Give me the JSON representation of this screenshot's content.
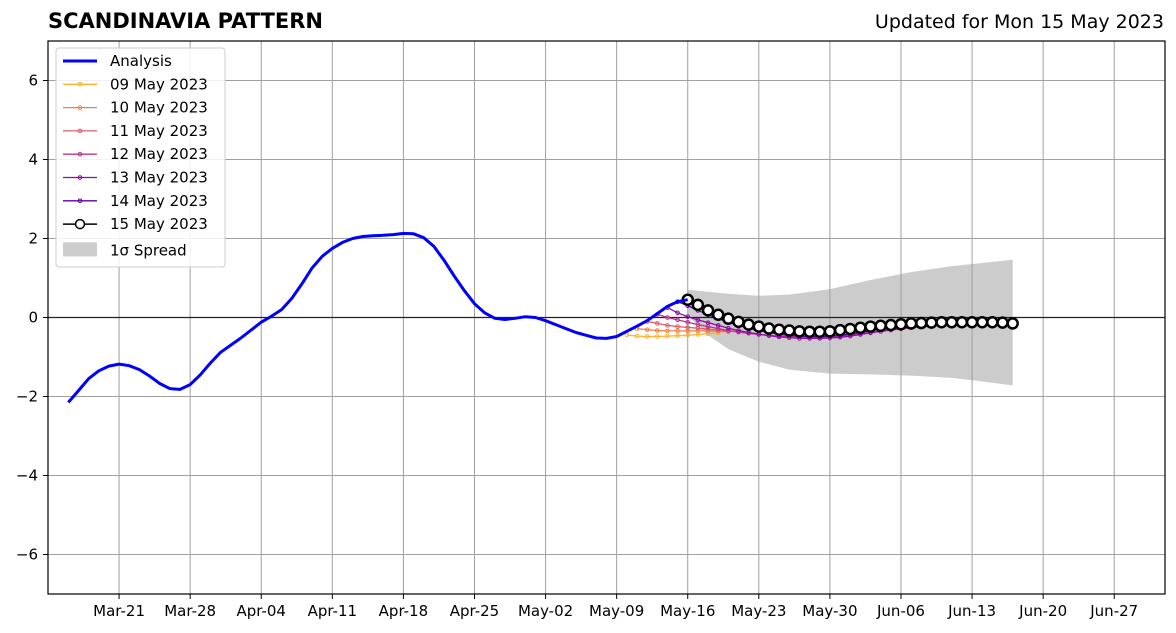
{
  "chart_data": {
    "type": "line",
    "title": "SCANDINAVIA PATTERN",
    "subtitle": "Updated for Mon 15 May 2023",
    "xlabel": "",
    "ylabel": "",
    "xlim": [
      "2023-03-14",
      "2023-07-02"
    ],
    "ylim": [
      -7,
      7
    ],
    "x_ticks": [
      "Mar-21",
      "Mar-28",
      "Apr-04",
      "Apr-11",
      "Apr-18",
      "Apr-25",
      "May-02",
      "May-09",
      "May-16",
      "May-23",
      "May-30",
      "Jun-06",
      "Jun-13",
      "Jun-20",
      "Jun-27"
    ],
    "y_ticks": [
      -6,
      -4,
      -2,
      0,
      2,
      4,
      6
    ],
    "y_tick_labels": [
      "−6",
      "−4",
      "−2",
      "0",
      "2",
      "4",
      "6"
    ],
    "grid": true,
    "legend_position": "top-left",
    "analysis": {
      "name": "Analysis",
      "color": "#0000ff",
      "points": [
        [
          "2023-03-16",
          -2.15
        ],
        [
          "2023-03-17",
          -1.85
        ],
        [
          "2023-03-18",
          -1.55
        ],
        [
          "2023-03-19",
          -1.35
        ],
        [
          "2023-03-20",
          -1.23
        ],
        [
          "2023-03-21",
          -1.18
        ],
        [
          "2023-03-22",
          -1.22
        ],
        [
          "2023-03-23",
          -1.32
        ],
        [
          "2023-03-24",
          -1.48
        ],
        [
          "2023-03-25",
          -1.67
        ],
        [
          "2023-03-26",
          -1.8
        ],
        [
          "2023-03-27",
          -1.82
        ],
        [
          "2023-03-28",
          -1.7
        ],
        [
          "2023-03-29",
          -1.45
        ],
        [
          "2023-03-30",
          -1.15
        ],
        [
          "2023-03-31",
          -0.88
        ],
        [
          "2023-04-01",
          -0.7
        ],
        [
          "2023-04-02",
          -0.52
        ],
        [
          "2023-04-03",
          -0.32
        ],
        [
          "2023-04-04",
          -0.12
        ],
        [
          "2023-04-05",
          0.03
        ],
        [
          "2023-04-06",
          0.2
        ],
        [
          "2023-04-07",
          0.48
        ],
        [
          "2023-04-08",
          0.85
        ],
        [
          "2023-04-09",
          1.25
        ],
        [
          "2023-04-10",
          1.55
        ],
        [
          "2023-04-11",
          1.75
        ],
        [
          "2023-04-12",
          1.9
        ],
        [
          "2023-04-13",
          2.0
        ],
        [
          "2023-04-14",
          2.05
        ],
        [
          "2023-04-15",
          2.07
        ],
        [
          "2023-04-16",
          2.08
        ],
        [
          "2023-04-17",
          2.1
        ],
        [
          "2023-04-18",
          2.13
        ],
        [
          "2023-04-19",
          2.12
        ],
        [
          "2023-04-20",
          2.02
        ],
        [
          "2023-04-21",
          1.8
        ],
        [
          "2023-04-22",
          1.45
        ],
        [
          "2023-04-23",
          1.05
        ],
        [
          "2023-04-24",
          0.68
        ],
        [
          "2023-04-25",
          0.35
        ],
        [
          "2023-04-26",
          0.12
        ],
        [
          "2023-04-27",
          -0.02
        ],
        [
          "2023-04-28",
          -0.05
        ],
        [
          "2023-04-29",
          -0.02
        ],
        [
          "2023-04-30",
          0.02
        ],
        [
          "2023-05-01",
          0.0
        ],
        [
          "2023-05-02",
          -0.08
        ],
        [
          "2023-05-03",
          -0.18
        ],
        [
          "2023-05-04",
          -0.28
        ],
        [
          "2023-05-05",
          -0.38
        ],
        [
          "2023-05-06",
          -0.45
        ],
        [
          "2023-05-07",
          -0.52
        ],
        [
          "2023-05-08",
          -0.53
        ],
        [
          "2023-05-09",
          -0.48
        ],
        [
          "2023-05-10",
          -0.35
        ],
        [
          "2023-05-11",
          -0.22
        ],
        [
          "2023-05-12",
          -0.08
        ],
        [
          "2023-05-13",
          0.1
        ],
        [
          "2023-05-14",
          0.28
        ],
        [
          "2023-05-15",
          0.4
        ],
        [
          "2023-05-16",
          0.45
        ]
      ]
    },
    "forecasts": [
      {
        "name": "09 May 2023",
        "color": "#fdb32f",
        "points": [
          [
            "2023-05-10",
            -0.44
          ],
          [
            "2023-05-11",
            -0.47
          ],
          [
            "2023-05-12",
            -0.48
          ],
          [
            "2023-05-13",
            -0.48
          ],
          [
            "2023-05-14",
            -0.47
          ],
          [
            "2023-05-15",
            -0.46
          ],
          [
            "2023-05-16",
            -0.45
          ],
          [
            "2023-05-17",
            -0.43
          ],
          [
            "2023-05-18",
            -0.41
          ],
          [
            "2023-05-19",
            -0.39
          ]
        ]
      },
      {
        "name": "10 May 2023",
        "color": "#f1813f",
        "points": [
          [
            "2023-05-11",
            -0.28
          ],
          [
            "2023-05-12",
            -0.31
          ],
          [
            "2023-05-13",
            -0.33
          ],
          [
            "2023-05-14",
            -0.34
          ],
          [
            "2023-05-15",
            -0.34
          ],
          [
            "2023-05-16",
            -0.34
          ],
          [
            "2023-05-17",
            -0.34
          ],
          [
            "2023-05-18",
            -0.34
          ],
          [
            "2023-05-19",
            -0.35
          ],
          [
            "2023-05-20",
            -0.36
          ]
        ]
      },
      {
        "name": "11 May 2023",
        "color": "#db5c68",
        "points": [
          [
            "2023-05-12",
            -0.1
          ],
          [
            "2023-05-13",
            -0.15
          ],
          [
            "2023-05-14",
            -0.2
          ],
          [
            "2023-05-15",
            -0.23
          ],
          [
            "2023-05-16",
            -0.25
          ],
          [
            "2023-05-17",
            -0.27
          ],
          [
            "2023-05-18",
            -0.3
          ],
          [
            "2023-05-19",
            -0.32
          ],
          [
            "2023-05-20",
            -0.34
          ],
          [
            "2023-05-21",
            -0.36
          ]
        ]
      },
      {
        "name": "12 May 2023",
        "color": "#b83289",
        "points": [
          [
            "2023-05-13",
            0.08
          ],
          [
            "2023-05-14",
            0.0
          ],
          [
            "2023-05-15",
            -0.06
          ],
          [
            "2023-05-16",
            -0.12
          ],
          [
            "2023-05-17",
            -0.18
          ],
          [
            "2023-05-18",
            -0.23
          ],
          [
            "2023-05-19",
            -0.28
          ],
          [
            "2023-05-20",
            -0.33
          ],
          [
            "2023-05-21",
            -0.37
          ],
          [
            "2023-05-22",
            -0.4
          ],
          [
            "2023-05-23",
            -0.43
          ],
          [
            "2023-05-24",
            -0.45
          ],
          [
            "2023-05-25",
            -0.47
          ],
          [
            "2023-05-26",
            -0.48
          ],
          [
            "2023-05-27",
            -0.49
          ],
          [
            "2023-05-28",
            -0.5
          ],
          [
            "2023-05-29",
            -0.5
          ],
          [
            "2023-05-30",
            -0.49
          ],
          [
            "2023-05-31",
            -0.47
          ],
          [
            "2023-06-01",
            -0.44
          ],
          [
            "2023-06-02",
            -0.41
          ],
          [
            "2023-06-03",
            -0.38
          ],
          [
            "2023-06-04",
            -0.35
          ],
          [
            "2023-06-05",
            -0.32
          ],
          [
            "2023-06-06",
            -0.29
          ],
          [
            "2023-06-07",
            -0.26
          ],
          [
            "2023-06-08",
            -0.24
          ],
          [
            "2023-06-09",
            -0.22
          ]
        ]
      },
      {
        "name": "13 May 2023",
        "color": "#8b0aa5",
        "points": [
          [
            "2023-05-14",
            0.25
          ],
          [
            "2023-05-15",
            0.12
          ],
          [
            "2023-05-16",
            0.02
          ],
          [
            "2023-05-17",
            -0.06
          ],
          [
            "2023-05-18",
            -0.13
          ],
          [
            "2023-05-19",
            -0.2
          ],
          [
            "2023-05-20",
            -0.27
          ],
          [
            "2023-05-21",
            -0.33
          ],
          [
            "2023-05-22",
            -0.38
          ],
          [
            "2023-05-23",
            -0.42
          ],
          [
            "2023-05-24",
            -0.46
          ],
          [
            "2023-05-25",
            -0.49
          ],
          [
            "2023-05-26",
            -0.51
          ],
          [
            "2023-05-27",
            -0.53
          ],
          [
            "2023-05-28",
            -0.53
          ],
          [
            "2023-05-29",
            -0.53
          ],
          [
            "2023-05-30",
            -0.52
          ],
          [
            "2023-05-31",
            -0.5
          ],
          [
            "2023-06-01",
            -0.47
          ],
          [
            "2023-06-02",
            -0.43
          ],
          [
            "2023-06-03",
            -0.39
          ],
          [
            "2023-06-04",
            -0.35
          ],
          [
            "2023-06-05",
            -0.31
          ],
          [
            "2023-06-06",
            -0.27
          ],
          [
            "2023-06-07",
            -0.24
          ],
          [
            "2023-06-08",
            -0.21
          ],
          [
            "2023-06-09",
            -0.18
          ],
          [
            "2023-06-10",
            -0.16
          ]
        ]
      },
      {
        "name": "14 May 2023",
        "color": "#5c01a6",
        "points": [
          [
            "2023-05-15",
            0.4
          ],
          [
            "2023-05-16",
            0.3
          ],
          [
            "2023-05-17",
            0.18
          ],
          [
            "2023-05-18",
            0.07
          ],
          [
            "2023-05-19",
            -0.03
          ],
          [
            "2023-05-20",
            -0.12
          ],
          [
            "2023-05-21",
            -0.2
          ],
          [
            "2023-05-22",
            -0.27
          ],
          [
            "2023-05-23",
            -0.33
          ],
          [
            "2023-05-24",
            -0.38
          ],
          [
            "2023-05-25",
            -0.42
          ],
          [
            "2023-05-26",
            -0.45
          ],
          [
            "2023-05-27",
            -0.47
          ],
          [
            "2023-05-28",
            -0.48
          ],
          [
            "2023-05-29",
            -0.48
          ],
          [
            "2023-05-30",
            -0.47
          ],
          [
            "2023-05-31",
            -0.45
          ],
          [
            "2023-06-01",
            -0.42
          ],
          [
            "2023-06-02",
            -0.38
          ],
          [
            "2023-06-03",
            -0.34
          ],
          [
            "2023-06-04",
            -0.3
          ],
          [
            "2023-06-05",
            -0.26
          ],
          [
            "2023-06-06",
            -0.23
          ],
          [
            "2023-06-07",
            -0.2
          ],
          [
            "2023-06-08",
            -0.17
          ],
          [
            "2023-06-09",
            -0.15
          ],
          [
            "2023-06-10",
            -0.13
          ],
          [
            "2023-06-11",
            -0.12
          ]
        ]
      },
      {
        "name": "15 May 2023",
        "color": "#000000",
        "marker_fill": "#ffffff",
        "points": [
          [
            "2023-05-16",
            0.45
          ],
          [
            "2023-05-17",
            0.32
          ],
          [
            "2023-05-18",
            0.18
          ],
          [
            "2023-05-19",
            0.07
          ],
          [
            "2023-05-20",
            -0.03
          ],
          [
            "2023-05-21",
            -0.11
          ],
          [
            "2023-05-22",
            -0.18
          ],
          [
            "2023-05-23",
            -0.23
          ],
          [
            "2023-05-24",
            -0.28
          ],
          [
            "2023-05-25",
            -0.31
          ],
          [
            "2023-05-26",
            -0.33
          ],
          [
            "2023-05-27",
            -0.35
          ],
          [
            "2023-05-28",
            -0.36
          ],
          [
            "2023-05-29",
            -0.36
          ],
          [
            "2023-05-30",
            -0.35
          ],
          [
            "2023-05-31",
            -0.32
          ],
          [
            "2023-06-01",
            -0.29
          ],
          [
            "2023-06-02",
            -0.26
          ],
          [
            "2023-06-03",
            -0.23
          ],
          [
            "2023-06-04",
            -0.21
          ],
          [
            "2023-06-05",
            -0.19
          ],
          [
            "2023-06-06",
            -0.17
          ],
          [
            "2023-06-07",
            -0.15
          ],
          [
            "2023-06-08",
            -0.14
          ],
          [
            "2023-06-09",
            -0.13
          ],
          [
            "2023-06-10",
            -0.12
          ],
          [
            "2023-06-11",
            -0.12
          ],
          [
            "2023-06-12",
            -0.12
          ],
          [
            "2023-06-13",
            -0.12
          ],
          [
            "2023-06-14",
            -0.12
          ],
          [
            "2023-06-15",
            -0.12
          ],
          [
            "2023-06-16",
            -0.13
          ],
          [
            "2023-06-17",
            -0.15
          ]
        ]
      }
    ],
    "spread": {
      "name": "1σ Spread",
      "color": "#cccccc",
      "upper": [
        [
          "2023-05-16",
          0.7
        ],
        [
          "2023-05-20",
          0.6
        ],
        [
          "2023-05-23",
          0.55
        ],
        [
          "2023-05-26",
          0.58
        ],
        [
          "2023-05-30",
          0.72
        ],
        [
          "2023-06-03",
          0.95
        ],
        [
          "2023-06-07",
          1.15
        ],
        [
          "2023-06-11",
          1.3
        ],
        [
          "2023-06-14",
          1.38
        ],
        [
          "2023-06-17",
          1.46
        ]
      ],
      "lower": [
        [
          "2023-05-16",
          0.05
        ],
        [
          "2023-05-18",
          -0.45
        ],
        [
          "2023-05-20",
          -0.8
        ],
        [
          "2023-05-23",
          -1.12
        ],
        [
          "2023-05-26",
          -1.32
        ],
        [
          "2023-05-30",
          -1.42
        ],
        [
          "2023-06-03",
          -1.44
        ],
        [
          "2023-06-07",
          -1.47
        ],
        [
          "2023-06-11",
          -1.53
        ],
        [
          "2023-06-14",
          -1.62
        ],
        [
          "2023-06-17",
          -1.72
        ]
      ]
    }
  }
}
